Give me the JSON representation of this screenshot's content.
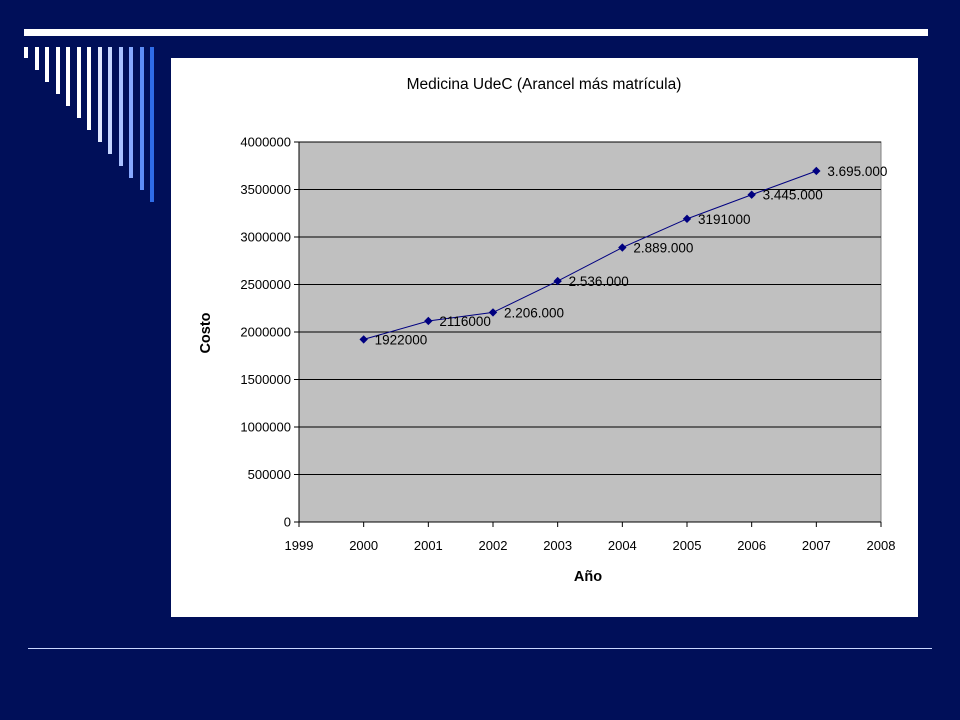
{
  "slide": {
    "background": "#000f59",
    "accent_bars": [
      "#ffffff",
      "#ffffff",
      "#ffffff",
      "#ffffff",
      "#ffffff",
      "#ffffff",
      "#ffffff",
      "#e1e8ff",
      "#c6d6ff",
      "#a8c0ff",
      "#86a8ff",
      "#5d8cf6",
      "#2f6ce8"
    ]
  },
  "chart_data": {
    "type": "line",
    "title": "Medicina UdeC (Arancel más matrícula)",
    "xlabel": "Año",
    "ylabel": "Costo",
    "xlim": [
      1999,
      2008
    ],
    "ylim": [
      0,
      4000000
    ],
    "x_ticks": [
      "1999",
      "2000",
      "2001",
      "2002",
      "2003",
      "2004",
      "2005",
      "2006",
      "2007",
      "2008"
    ],
    "y_ticks": [
      "0",
      "500000",
      "1000000",
      "1500000",
      "2000000",
      "2500000",
      "3000000",
      "3500000",
      "4000000"
    ],
    "grid": true,
    "legend": "none",
    "plot_background": "#c0c0c0",
    "series": [
      {
        "color": "#000080",
        "x": [
          2000,
          2001,
          2002,
          2003,
          2004,
          2005,
          2006,
          2007
        ],
        "values": [
          1922000,
          2116000,
          2206000,
          2536000,
          2889000,
          3191000,
          3445000,
          3695000
        ],
        "data_labels": [
          "1922000",
          "2116000",
          "2.206.000",
          "2.536.000",
          "2.889.000",
          "3191000",
          "3.445.000",
          "3.695.000"
        ]
      }
    ]
  }
}
